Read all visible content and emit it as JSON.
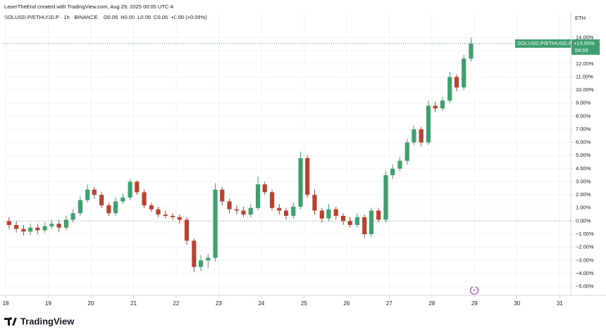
{
  "chart_data": {
    "type": "candlestick",
    "attribution": "LaserTheEnd created with TradingView.com, Aug 29, 2025 00:05 UTC-4",
    "symbol": "SOLUSD.P/ETHUSD.P · 1h · BINANCE",
    "ohlc_legend": [
      "O0.05",
      "H0.05",
      "L0.05",
      "C0.05",
      "+0.00 (+0.09%)"
    ],
    "currency": "ETH",
    "last_badge": {
      "name": "SOLUSD.P/ETHUSD.P",
      "label": "+13.55%",
      "countdown": "54:09"
    },
    "last_value": 13.55,
    "brand": "TradingView",
    "up_color": "#3f9f6e",
    "down_color": "#b5432f",
    "xlim": [
      17.95,
      31.26
    ],
    "xticks": [
      18,
      19,
      20,
      21,
      22,
      23,
      24,
      25,
      26,
      27,
      28,
      29,
      30,
      31
    ],
    "ylim": [
      -5.4,
      15.8
    ],
    "yticks": [
      {
        "value": 14,
        "label": "14.00%"
      },
      {
        "value": 13,
        "label": "13.00%"
      },
      {
        "value": 12,
        "label": "12.00%"
      },
      {
        "value": 11,
        "label": "11.00%"
      },
      {
        "value": 10,
        "label": "10.00%"
      },
      {
        "value": 9,
        "label": "9.00%"
      },
      {
        "value": 8,
        "label": "8.00%"
      },
      {
        "value": 7,
        "label": "7.00%"
      },
      {
        "value": 6,
        "label": "6.00%"
      },
      {
        "value": 5,
        "label": "5.00%"
      },
      {
        "value": 4,
        "label": "4.00%"
      },
      {
        "value": 3,
        "label": "3.00%"
      },
      {
        "value": 2,
        "label": "2.00%"
      },
      {
        "value": 1,
        "label": "1.00%"
      },
      {
        "value": 0,
        "label": "0.00%"
      },
      {
        "value": -1,
        "label": "−1.00%"
      },
      {
        "value": -2,
        "label": "−2.00%"
      },
      {
        "value": -3,
        "label": "−3.00%"
      },
      {
        "value": -4,
        "label": "−4.00%"
      },
      {
        "value": -5,
        "label": "−5.00%"
      }
    ],
    "x": [
      18.08,
      18.25,
      18.42,
      18.58,
      18.75,
      18.92,
      19.08,
      19.25,
      19.42,
      19.58,
      19.75,
      19.92,
      20.08,
      20.25,
      20.42,
      20.58,
      20.75,
      20.92,
      21.08,
      21.25,
      21.42,
      21.58,
      21.75,
      21.92,
      22.08,
      22.25,
      22.42,
      22.58,
      22.75,
      22.92,
      23.08,
      23.25,
      23.42,
      23.58,
      23.75,
      23.92,
      24.08,
      24.25,
      24.42,
      24.58,
      24.75,
      24.92,
      25.08,
      25.25,
      25.42,
      25.58,
      25.75,
      25.92,
      26.08,
      26.25,
      26.42,
      26.58,
      26.75,
      26.92,
      27.08,
      27.25,
      27.42,
      27.58,
      27.75,
      27.92,
      28.08,
      28.25,
      28.42,
      28.58,
      28.75,
      28.92
    ],
    "open": [
      0,
      -0.3,
      -0.6,
      -0.8,
      -0.5,
      -0.7,
      -0.4,
      -0.2,
      -0.5,
      0.1,
      0.6,
      1.6,
      2.4,
      2.0,
      1.2,
      0.6,
      1.5,
      1.8,
      3.0,
      2.2,
      1.2,
      0.9,
      0.5,
      0.4,
      0.3,
      0.1,
      -1.5,
      -3.5,
      -3.0,
      -2.8,
      2.4,
      1.5,
      0.9,
      0.8,
      0.5,
      1.0,
      2.8,
      2.2,
      1.0,
      0.8,
      0.4,
      1.1,
      4.8,
      2.0,
      0.8,
      0.2,
      0.9,
      0.4,
      0.0,
      -0.3,
      0.3,
      -1.0,
      0.8,
      0.1,
      3.5,
      4.0,
      4.6,
      6.0,
      7.0,
      6.0,
      8.8,
      8.6,
      9.2,
      11.0,
      10.2,
      12.4
    ],
    "high": [
      0.3,
      0.0,
      -0.3,
      -0.2,
      -0.2,
      -0.1,
      0.1,
      0.1,
      0.4,
      0.9,
      1.9,
      2.8,
      2.6,
      2.2,
      1.4,
      1.8,
      2.1,
      3.2,
      3.1,
      2.4,
      1.4,
      1.1,
      0.8,
      0.6,
      0.5,
      0.3,
      -1.3,
      -2.6,
      -2.5,
      2.9,
      2.6,
      1.7,
      1.2,
      1.1,
      1.3,
      3.4,
      3.0,
      2.4,
      1.3,
      1.0,
      1.4,
      5.3,
      5.0,
      2.4,
      1.0,
      1.3,
      1.1,
      0.6,
      0.3,
      0.6,
      0.5,
      1.0,
      1.0,
      3.8,
      4.3,
      4.9,
      6.3,
      7.3,
      7.2,
      9.2,
      9.1,
      9.5,
      11.4,
      11.2,
      12.7,
      14.0
    ],
    "low": [
      -0.6,
      -0.9,
      -1.1,
      -1.1,
      -1.0,
      -0.9,
      -0.6,
      -0.8,
      -0.7,
      -0.1,
      0.4,
      1.4,
      1.7,
      1.0,
      0.4,
      0.4,
      1.3,
      1.6,
      2.0,
      1.0,
      0.7,
      0.3,
      0.2,
      0.1,
      -0.2,
      -1.8,
      -3.9,
      -3.8,
      -3.6,
      -3.1,
      1.2,
      0.6,
      0.5,
      0.3,
      0.3,
      0.8,
      2.0,
      0.8,
      0.5,
      0.1,
      0.2,
      0.9,
      1.8,
      0.5,
      -0.1,
      0.0,
      0.1,
      -0.3,
      -0.5,
      -0.5,
      -1.3,
      -1.2,
      -0.1,
      -0.1,
      3.2,
      3.8,
      4.3,
      5.8,
      5.7,
      5.8,
      8.3,
      8.4,
      9.0,
      9.9,
      10.0,
      12.2
    ],
    "close": [
      -0.3,
      -0.6,
      -0.8,
      -0.5,
      -0.7,
      -0.4,
      -0.2,
      -0.5,
      0.1,
      0.6,
      1.6,
      2.4,
      2.0,
      1.2,
      0.6,
      1.5,
      1.8,
      3.0,
      2.2,
      1.2,
      0.9,
      0.5,
      0.4,
      0.3,
      0.1,
      -1.5,
      -3.5,
      -3.0,
      -2.8,
      2.4,
      1.5,
      0.9,
      0.8,
      0.5,
      1.0,
      2.8,
      2.2,
      1.0,
      0.8,
      0.4,
      1.1,
      4.8,
      2.0,
      0.8,
      0.2,
      0.9,
      0.4,
      0.0,
      -0.3,
      0.3,
      -1.0,
      0.8,
      0.1,
      3.5,
      4.0,
      4.6,
      6.0,
      7.0,
      6.0,
      8.8,
      8.6,
      9.2,
      11.0,
      10.2,
      12.4,
      13.55
    ]
  }
}
